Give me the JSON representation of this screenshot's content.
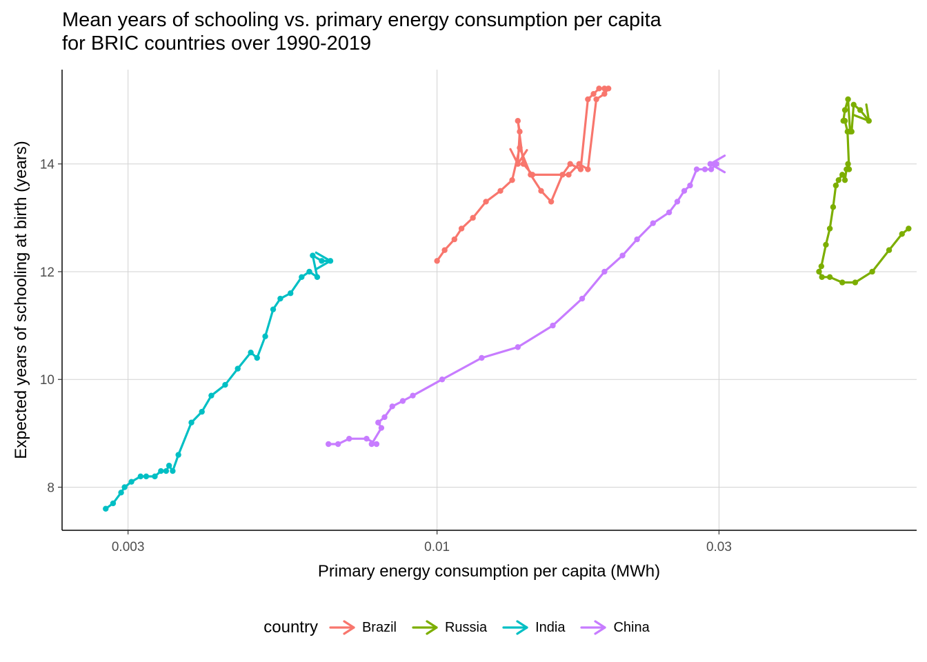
{
  "chart_data": {
    "type": "line",
    "title_lines": [
      "Mean years of schooling vs. primary energy consumption per capita",
      "for BRIC countries over 1990-2019"
    ],
    "xlabel": "Primary energy consumption per capita (MWh)",
    "ylabel": "Expected years of schooling at birth (years)",
    "x_scale": "log10",
    "xlim": [
      0.00232,
      0.0648
    ],
    "ylim": [
      7.2,
      15.75
    ],
    "x_ticks": [
      0.003,
      0.01,
      0.03
    ],
    "x_tick_labels": [
      "0.003",
      "0.01",
      "0.03"
    ],
    "y_ticks": [
      8,
      10,
      12,
      14
    ],
    "y_tick_labels": [
      "8",
      "10",
      "12",
      "14"
    ],
    "grid": true,
    "legend": {
      "title": "country",
      "position": "bottom"
    },
    "series": [
      {
        "name": "Brazil",
        "color": "#F8766D",
        "x": [
          0.01,
          0.0103,
          0.0107,
          0.011,
          0.0115,
          0.0121,
          0.0128,
          0.0134,
          0.0138,
          0.0144,
          0.015,
          0.0156,
          0.0163,
          0.0168,
          0.0175,
          0.018,
          0.0184,
          0.0188,
          0.0192,
          0.0195,
          0.0192,
          0.0186,
          0.018,
          0.0174,
          0.0167,
          0.0145,
          0.014,
          0.0137,
          0.0138,
          0.0137
        ],
        "y": [
          12.2,
          12.4,
          12.6,
          12.8,
          13.0,
          13.3,
          13.5,
          13.7,
          14.3,
          13.8,
          13.5,
          13.3,
          13.8,
          14.0,
          13.9,
          15.2,
          15.3,
          15.4,
          15.4,
          15.4,
          15.3,
          15.2,
          13.9,
          14.0,
          13.8,
          13.8,
          14.0,
          14.8,
          14.6,
          14.0
        ]
      },
      {
        "name": "Russia",
        "color": "#7CAE00",
        "x": [
          0.0628,
          0.0612,
          0.0582,
          0.0545,
          0.051,
          0.0485,
          0.0462,
          0.0448,
          0.0443,
          0.0447,
          0.0455,
          0.0462,
          0.0468,
          0.0473,
          0.0478,
          0.0485,
          0.049,
          0.0493,
          0.0496,
          0.0498,
          0.0495,
          0.049,
          0.0487,
          0.049,
          0.0496,
          0.05,
          0.0503,
          0.0507,
          0.052,
          0.0538
        ],
        "y": [
          12.8,
          12.7,
          12.4,
          12.0,
          11.8,
          11.8,
          11.9,
          11.9,
          12.0,
          12.1,
          12.5,
          12.8,
          13.2,
          13.6,
          13.7,
          13.8,
          13.7,
          13.9,
          14.0,
          13.9,
          14.6,
          14.8,
          14.8,
          15.0,
          15.2,
          14.6,
          14.6,
          15.1,
          15.0,
          14.8
        ]
      },
      {
        "name": "India",
        "color": "#00BFC4",
        "x": [
          0.00275,
          0.00283,
          0.00292,
          0.00296,
          0.00304,
          0.00315,
          0.00322,
          0.00333,
          0.00341,
          0.00348,
          0.00352,
          0.00357,
          0.00365,
          0.00384,
          0.004,
          0.00415,
          0.00438,
          0.0046,
          0.00484,
          0.00496,
          0.00512,
          0.00528,
          0.00543,
          0.00565,
          0.0059,
          0.00608,
          0.00627,
          0.00616,
          0.00638,
          0.0066
        ],
        "y": [
          7.6,
          7.7,
          7.9,
          8.0,
          8.1,
          8.2,
          8.2,
          8.2,
          8.3,
          8.3,
          8.4,
          8.3,
          8.6,
          9.2,
          9.4,
          9.7,
          9.9,
          10.2,
          10.5,
          10.4,
          10.8,
          11.3,
          11.5,
          11.6,
          11.9,
          12.0,
          11.9,
          12.3,
          12.2,
          12.2
        ]
      },
      {
        "name": "China",
        "color": "#C77CFF",
        "x": [
          0.00655,
          0.0068,
          0.0071,
          0.0076,
          0.0079,
          0.00775,
          0.00805,
          0.00795,
          0.00815,
          0.0084,
          0.00875,
          0.0091,
          0.0102,
          0.0119,
          0.0137,
          0.0157,
          0.0176,
          0.0192,
          0.0206,
          0.0218,
          0.0232,
          0.0247,
          0.0255,
          0.0262,
          0.0268,
          0.0275,
          0.0284,
          0.0291,
          0.0297,
          0.029
        ],
        "y": [
          8.8,
          8.8,
          8.9,
          8.9,
          8.8,
          8.8,
          9.1,
          9.2,
          9.3,
          9.5,
          9.6,
          9.7,
          10.0,
          10.4,
          10.6,
          11.0,
          11.5,
          12.0,
          12.3,
          12.6,
          12.9,
          13.1,
          13.3,
          13.5,
          13.6,
          13.9,
          13.9,
          13.9,
          14.0,
          14.0
        ]
      }
    ]
  }
}
